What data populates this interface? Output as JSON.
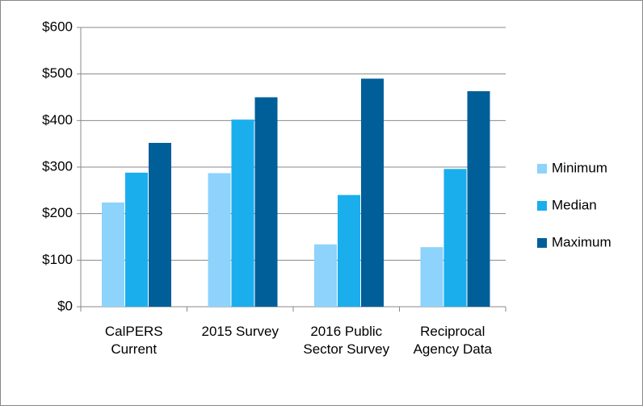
{
  "chart_data": {
    "type": "bar",
    "categories": [
      "CalPERS Current",
      "2015 Survey",
      "2016 Public Sector Survey",
      "Reciprocal Agency Data"
    ],
    "series": [
      {
        "name": "Minimum",
        "color": "#8dd3fb",
        "values": [
          224,
          287,
          134,
          128
        ]
      },
      {
        "name": "Median",
        "color": "#1aaeed",
        "values": [
          288,
          402,
          240,
          296
        ]
      },
      {
        "name": "Maximum",
        "color": "#005f99",
        "values": [
          352,
          450,
          490,
          463
        ]
      }
    ],
    "ylim": [
      0,
      600
    ],
    "yticks": [
      {
        "value": 0,
        "label": "$0"
      },
      {
        "value": 100,
        "label": "$100"
      },
      {
        "value": 200,
        "label": "$200"
      },
      {
        "value": 300,
        "label": "$300"
      },
      {
        "value": 400,
        "label": "$400"
      },
      {
        "value": 500,
        "label": "$500"
      },
      {
        "value": 600,
        "label": "$600"
      }
    ],
    "grid": true,
    "legend": "right"
  }
}
